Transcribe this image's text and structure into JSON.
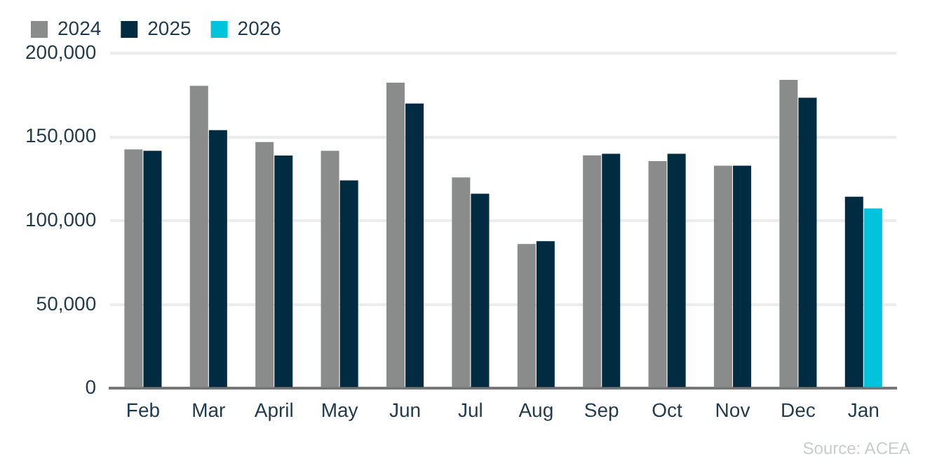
{
  "chart_data": {
    "type": "bar",
    "categories": [
      "Feb",
      "Mar",
      "April",
      "May",
      "Jun",
      "Jul",
      "Aug",
      "Sep",
      "Oct",
      "Nov",
      "Dec",
      "Jan"
    ],
    "series": [
      {
        "name": "2024",
        "color": "#8a8c8c",
        "values": [
          142600,
          180600,
          147000,
          141800,
          182400,
          125900,
          86200,
          139100,
          135600,
          132900,
          184100,
          null
        ]
      },
      {
        "name": "2025",
        "color": "#002b40",
        "values": [
          141800,
          154100,
          139000,
          124100,
          170000,
          116200,
          87900,
          140000,
          140000,
          132900,
          173500,
          114400
        ]
      },
      {
        "name": "2026",
        "color": "#00c4dc",
        "values": [
          null,
          null,
          null,
          null,
          null,
          null,
          null,
          null,
          null,
          null,
          null,
          107400
        ]
      }
    ],
    "ylim": [
      0,
      200000
    ],
    "yticks": [
      {
        "value": 0,
        "label": "0"
      },
      {
        "value": 50000,
        "label": "50,000"
      },
      {
        "value": 100000,
        "label": "100,000"
      },
      {
        "value": 150000,
        "label": "150,000"
      },
      {
        "value": 200000,
        "label": "200,000"
      }
    ],
    "grid": "y",
    "legend": "top left",
    "annotations": [
      "Source:  ACEA"
    ]
  }
}
